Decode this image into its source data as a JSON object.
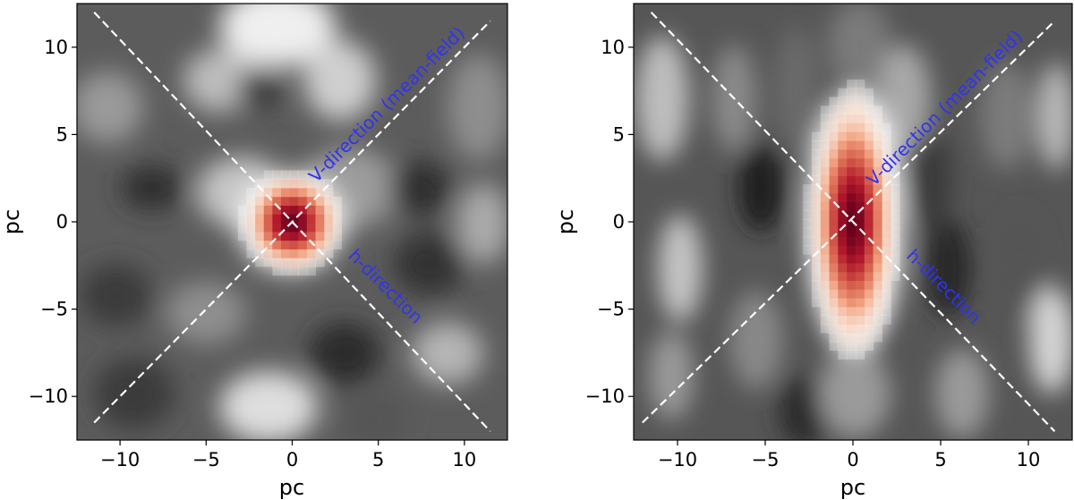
{
  "chart_data": [
    {
      "type": "heatmap",
      "panel": "left",
      "xlabel": "pc",
      "ylabel": "pc",
      "xlim": [
        -12.5,
        12.5
      ],
      "ylim": [
        -12.5,
        12.5
      ],
      "xticks": [
        -10,
        -5,
        0,
        5,
        10
      ],
      "yticks": [
        -10,
        -5,
        0,
        5,
        10
      ],
      "xtick_labels": [
        "−10",
        "−5",
        "0",
        "5",
        "10"
      ],
      "ytick_labels": [
        "−10",
        "−5",
        "0",
        "5",
        "10"
      ],
      "colormap": "grey-to-red (RdGy_r style)",
      "peak": {
        "x": 0,
        "y": 0,
        "sigma_x": 1.6,
        "sigma_y": 1.6
      },
      "lines": [
        {
          "label": "V-direction (mean-field)",
          "x": [
            -11.5,
            11.5
          ],
          "y": [
            -11.5,
            11.5
          ],
          "style": "dashed",
          "color": "#ffffff"
        },
        {
          "label": "h-direction",
          "x": [
            -11.5,
            11.5
          ],
          "y": [
            12,
            -12
          ],
          "style": "dashed",
          "color": "#ffffff"
        }
      ],
      "annotations": [
        {
          "text": "V-direction (mean-field)",
          "x": 1.4,
          "y": 2.2,
          "rotation": 45,
          "color": "#3333ee"
        },
        {
          "text": "h-direction",
          "x": 3.2,
          "y": -2.0,
          "rotation": -45,
          "color": "#3333ee"
        }
      ]
    },
    {
      "type": "heatmap",
      "panel": "right",
      "xlabel": "pc",
      "ylabel": "pc",
      "xlim": [
        -12.5,
        12.5
      ],
      "ylim": [
        -12.5,
        12.5
      ],
      "xticks": [
        -10,
        -5,
        0,
        5,
        10
      ],
      "yticks": [
        -10,
        -5,
        0,
        5,
        10
      ],
      "xtick_labels": [
        "−10",
        "−5",
        "0",
        "5",
        "10"
      ],
      "ytick_labels": [
        "−10",
        "−5",
        "0",
        "5",
        "10"
      ],
      "colormap": "grey-to-red (RdGy_r style)",
      "peak": {
        "x": 0,
        "y": 0,
        "sigma_x": 1.4,
        "sigma_y": 4.2
      },
      "lines": [
        {
          "label": "V-direction (mean-field)",
          "x": [
            -12,
            11.5
          ],
          "y": [
            -11.5,
            11.5
          ],
          "style": "dashed",
          "color": "#ffffff"
        },
        {
          "label": "h-direction",
          "x": [
            -11.5,
            11.5
          ],
          "y": [
            12,
            -12
          ],
          "style": "dashed",
          "color": "#ffffff"
        }
      ],
      "annotations": [
        {
          "text": "V-direction (mean-field)",
          "x": 1.2,
          "y": 2.0,
          "rotation": 45,
          "color": "#3333ee"
        },
        {
          "text": "h-direction",
          "x": 3.0,
          "y": -2.0,
          "rotation": -45,
          "color": "#3333ee"
        }
      ]
    }
  ]
}
